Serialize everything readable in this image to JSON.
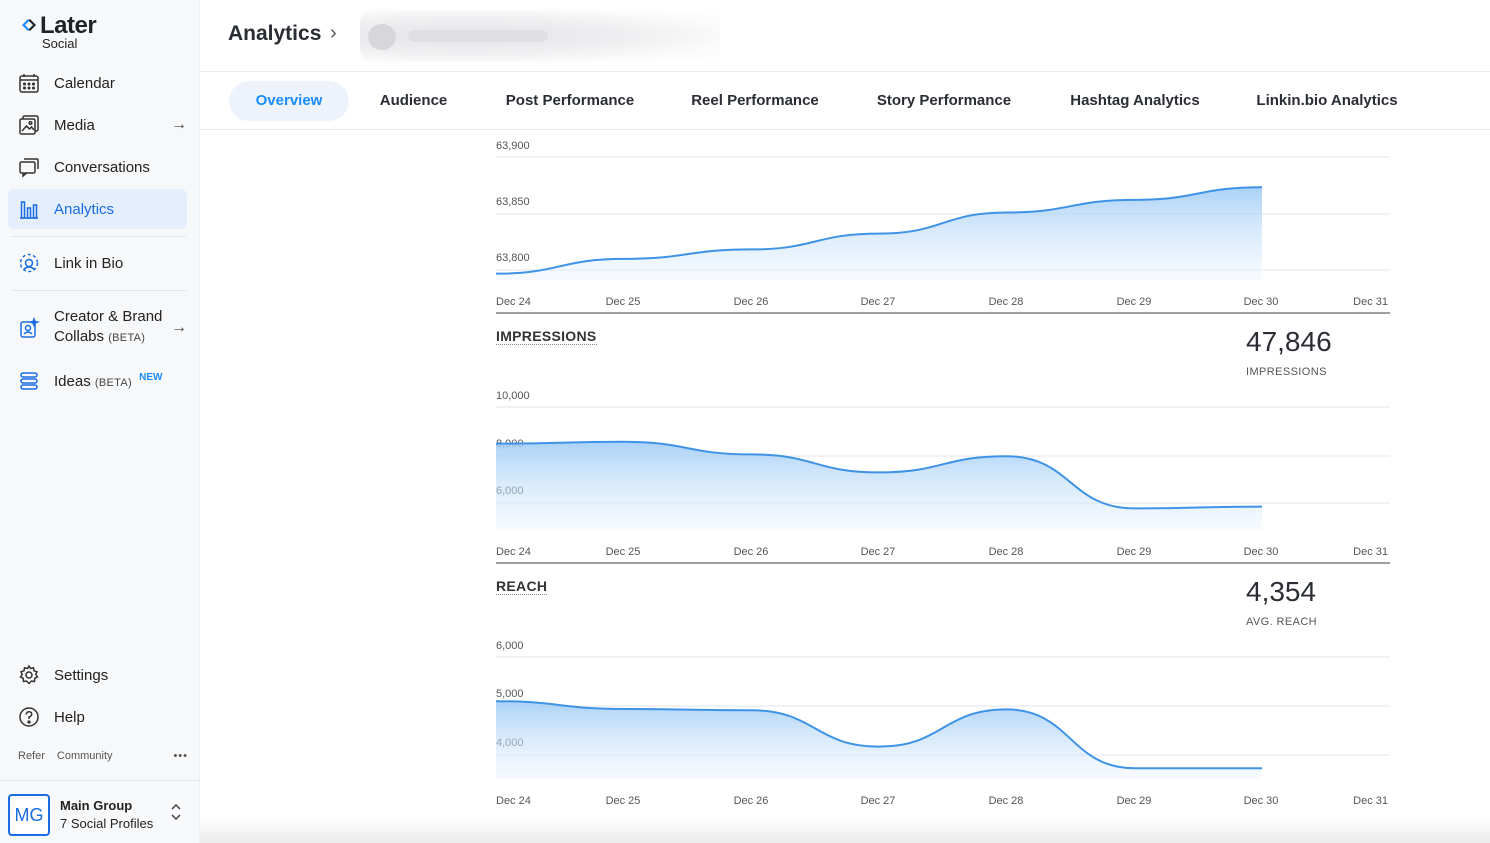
{
  "brand": {
    "name": "Later",
    "sub": "Social"
  },
  "sidebar": {
    "items": [
      {
        "label": "Calendar"
      },
      {
        "label": "Media"
      },
      {
        "label": "Conversations"
      },
      {
        "label": "Analytics"
      },
      {
        "label": "Link in Bio"
      },
      {
        "label": "Creator & Brand",
        "label2": "Collabs",
        "badge": "(BETA)"
      },
      {
        "label": "Ideas",
        "badge": "(BETA)",
        "new": "NEW"
      }
    ],
    "settings": "Settings",
    "help": "Help",
    "footer": {
      "refer": "Refer",
      "community": "Community",
      "more": "•••"
    },
    "account": {
      "initials": "MG",
      "name": "Main Group",
      "profiles": "7 Social Profiles"
    }
  },
  "header": {
    "title": "Analytics",
    "chevron": "›"
  },
  "tabs": [
    {
      "label": "Overview"
    },
    {
      "label": "Audience"
    },
    {
      "label": "Post Performance"
    },
    {
      "label": "Reel Performance"
    },
    {
      "label": "Story Performance"
    },
    {
      "label": "Hashtag Analytics"
    },
    {
      "label": "Linkin.bio Analytics"
    }
  ],
  "colors": {
    "accent": "#1a8cff",
    "line": "#3f93e6",
    "active_nav_bg": "#e4eefc"
  },
  "chart_data": [
    {
      "type": "area",
      "x": [
        "Dec 24",
        "Dec 25",
        "Dec 26",
        "Dec 27",
        "Dec 28",
        "Dec 29",
        "Dec 30",
        "Dec 31"
      ],
      "y_ticks": [
        "63,900",
        "63,850",
        "63,800"
      ],
      "ylim": [
        63778,
        63906
      ],
      "series": [
        {
          "values": [
            63784,
            63798,
            63807,
            63822,
            63842,
            63854,
            63866,
            null
          ]
        }
      ]
    },
    {
      "type": "area",
      "title": "IMPRESSIONS",
      "total": "47,846",
      "total_label": "IMPRESSIONS",
      "x": [
        "Dec 24",
        "Dec 25",
        "Dec 26",
        "Dec 27",
        "Dec 28",
        "Dec 29",
        "Dec 30",
        "Dec 31"
      ],
      "y_ticks": [
        "10,000",
        "8,000",
        "6,000"
      ],
      "ylim": [
        3000,
        10500
      ],
      "series": [
        {
          "values": [
            7800,
            7900,
            7200,
            6200,
            7100,
            4200,
            4300,
            null
          ]
        }
      ]
    },
    {
      "type": "area",
      "title": "REACH",
      "total": "4,354",
      "total_label": "AVG. REACH",
      "x": [
        "Dec 24",
        "Dec 25",
        "Dec 26",
        "Dec 27",
        "Dec 28",
        "Dec 29",
        "Dec 30",
        "Dec 31"
      ],
      "y_ticks": [
        "6,000",
        "5,000",
        "4,000"
      ],
      "ylim": [
        3200,
        6300
      ],
      "series": [
        {
          "values": [
            5000,
            4820,
            4790,
            3950,
            4810,
            3450,
            3450,
            null
          ]
        }
      ]
    }
  ]
}
